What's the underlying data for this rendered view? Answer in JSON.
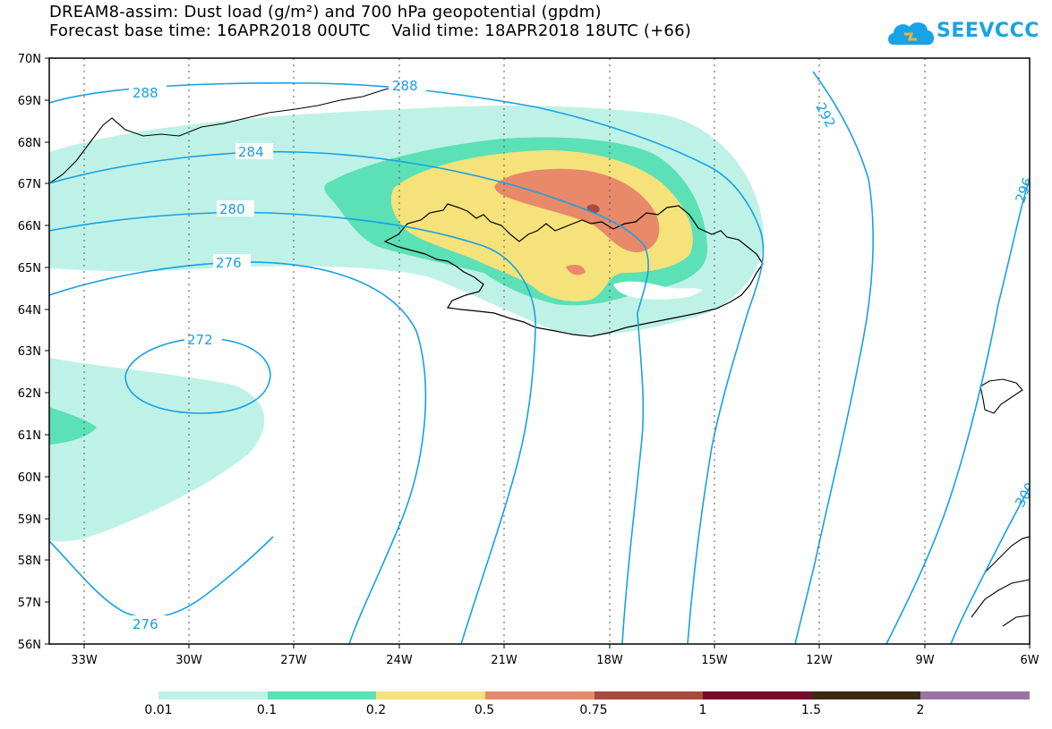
{
  "title": {
    "line1": "DREAM8-assim: Dust load (g/m²) and 700 hPa geopotential (gpdm)",
    "line2": "Forecast base time: 16APR2018 00UTC    Valid time: 18APR2018 18UTC (+66)"
  },
  "logo": {
    "text": "SEEVCCC",
    "icon": "cloud-logo-icon"
  },
  "lat_labels": [
    "70N",
    "69N",
    "68N",
    "67N",
    "66N",
    "65N",
    "64N",
    "63N",
    "62N",
    "61N",
    "60N",
    "59N",
    "58N",
    "57N",
    "56N"
  ],
  "lon_labels": [
    "33W",
    "30W",
    "27W",
    "24W",
    "21W",
    "18W",
    "15W",
    "12W",
    "9W",
    "6W"
  ],
  "contour_labels": [
    "288",
    "288",
    "284",
    "280",
    "276",
    "272",
    "276",
    "292",
    "296",
    "300"
  ],
  "colorbar": {
    "labels": [
      "0.01",
      "0.1",
      "0.2",
      "0.5",
      "0.75",
      "1",
      "1.5",
      "2"
    ],
    "colors": [
      "#bff2e6",
      "#5ce0b5",
      "#f5e27a",
      "#e8896a",
      "#a84b3c",
      "#7a0a2a",
      "#3a2a14",
      "#9a74a6"
    ]
  },
  "colors": {
    "contour": "#19a0e6",
    "coast": "#000000",
    "grid": "#555555"
  }
}
